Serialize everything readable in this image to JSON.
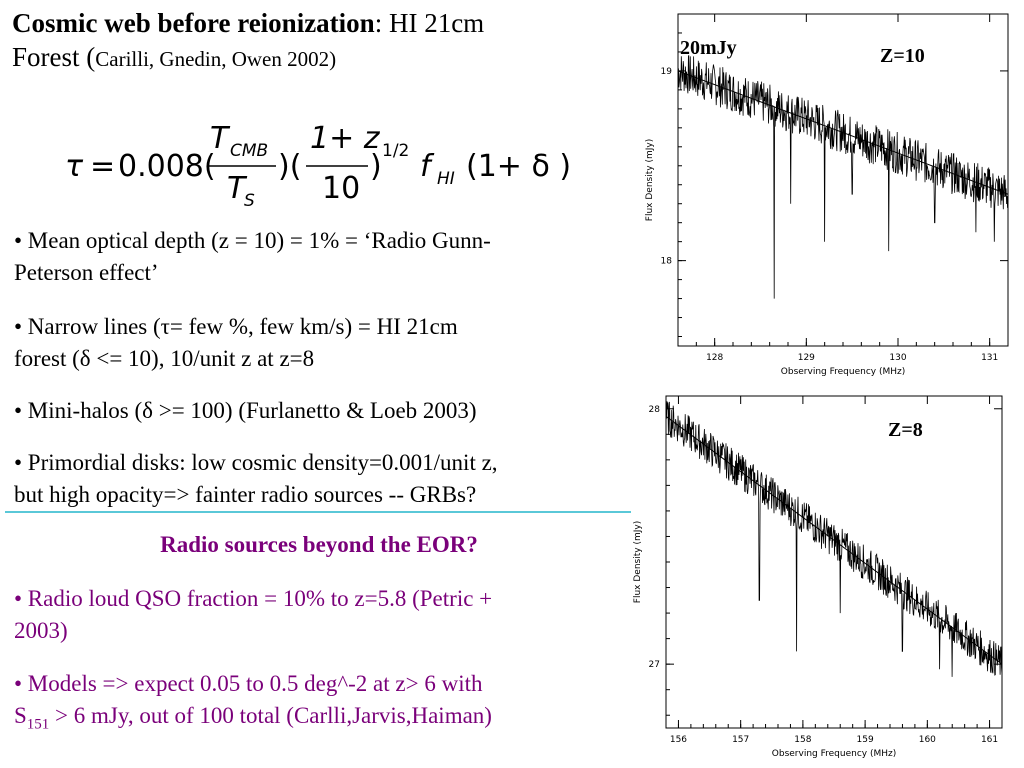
{
  "title": {
    "bold": "Cosmic web before reionization",
    "rest": ": HI 21cm",
    "line2_a": "Forest  (",
    "line2_small": "Carilli, Gnedin, Owen 2002)"
  },
  "formula": {
    "tau": "τ",
    "equals": "=",
    "coef": "0.008(",
    "num1": "T",
    "num1_sub": "CMB",
    "den1": "T",
    "den1_sub": "S",
    "mid": ")(",
    "num2": "1+ z",
    "den2": "10",
    "close": ")",
    "exp": "1/2",
    "f": "f",
    "f_sub": "HI",
    "tail": "(1+ δ )"
  },
  "bullets": [
    {
      "line1": "• Mean optical depth (z = 10) = 1%  =  ‘Radio Gunn-",
      "line2": "Peterson effect’"
    },
    {
      "line1": "• Narrow lines (τ= few %, few km/s) = HI 21cm",
      "line2": "forest (δ <= 10),  10/unit z  at z=8"
    },
    {
      "line1": "• Mini-halos (δ >= 100) (Furlanetto & Loeb 2003)",
      "line2": ""
    },
    {
      "line1": "• Primordial disks: low cosmic density=0.001/unit z,",
      "line2": "but high opacity=> fainter radio sources -- GRBs?"
    }
  ],
  "section": {
    "title": "Radio sources beyond the EOR?",
    "bullets": [
      {
        "line1": "• Radio loud QSO fraction = 10% to z=5.8 (Petric +",
        "line2": "2003)"
      },
      {
        "line1": "• Models => expect 0.05 to 0.5 deg^-2  at z> 6 with",
        "line2_a": "S",
        "line2_sub": "151",
        "line2_b": " > 6 mJy, out of 100 total (Carlli,Jarvis,Haiman)"
      }
    ]
  },
  "chart_data": [
    {
      "type": "line",
      "annotations": [
        "20mJy",
        "Z=10"
      ],
      "xlabel": "Observing Frequency (MHz)",
      "ylabel": "Flux Density (mJy)",
      "xlim": [
        127.6,
        131.2
      ],
      "ylim": [
        17.55,
        19.3
      ],
      "x_ticks": [
        "128",
        "129",
        "130",
        "131"
      ],
      "y_ticks": [
        "18",
        "19"
      ],
      "continuum": {
        "x": [
          127.6,
          131.2
        ],
        "y": [
          19.0,
          18.35
        ]
      },
      "absorption_lines": [
        {
          "x": 128.65,
          "y": 17.8
        },
        {
          "x": 128.83,
          "y": 18.3
        },
        {
          "x": 129.2,
          "y": 18.1
        },
        {
          "x": 129.5,
          "y": 18.35
        },
        {
          "x": 129.9,
          "y": 18.05
        },
        {
          "x": 130.4,
          "y": 18.2
        },
        {
          "x": 130.85,
          "y": 18.15
        },
        {
          "x": 131.05,
          "y": 18.1
        }
      ]
    },
    {
      "type": "line",
      "annotations": [
        "Z=8"
      ],
      "xlabel": "Observing Frequency (MHz)",
      "ylabel": "Flux Density (mJy)",
      "xlim": [
        155.8,
        161.2
      ],
      "ylim": [
        26.75,
        28.05
      ],
      "x_ticks": [
        "156",
        "157",
        "158",
        "159",
        "160",
        "161"
      ],
      "y_ticks": [
        "27",
        "28"
      ],
      "continuum": {
        "x": [
          155.8,
          161.2
        ],
        "y": [
          27.97,
          27.0
        ]
      },
      "absorption_lines": [
        {
          "x": 157.3,
          "y": 27.25
        },
        {
          "x": 157.9,
          "y": 27.05
        },
        {
          "x": 158.6,
          "y": 27.2
        },
        {
          "x": 159.6,
          "y": 27.05
        },
        {
          "x": 160.2,
          "y": 26.98
        },
        {
          "x": 160.4,
          "y": 26.95
        }
      ]
    }
  ]
}
